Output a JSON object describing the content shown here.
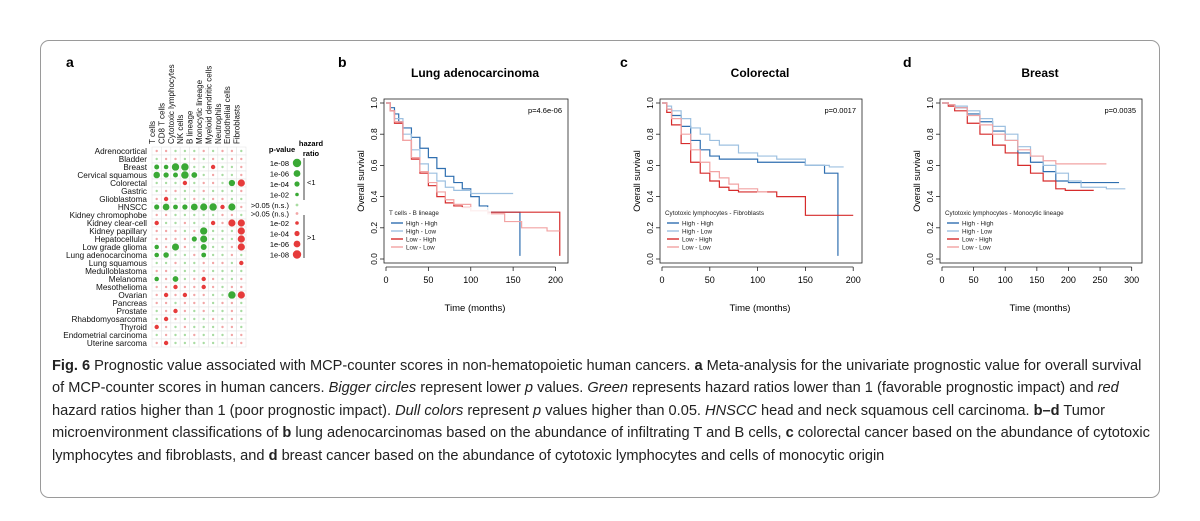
{
  "panel_labels": [
    "a",
    "b",
    "c",
    "d"
  ],
  "heatmap": {
    "columns": [
      "T cells",
      "CD8 T cells",
      "Cytotoxic lymphocytes",
      "NK cells",
      "B lineage",
      "Monocytic lineage",
      "Myeloid dendritic cells",
      "Neutrophils",
      "Endothelial cells",
      "Fibroblasts"
    ],
    "rows": [
      "Adrenocortical",
      "Bladder",
      "Breast",
      "Cervical squamous",
      "Colorectal",
      "Gastric",
      "Glioblastoma",
      "HNSCC",
      "Kidney chromophobe",
      "Kidney clear-cell",
      "Kidney papillary",
      "Hepatocellular",
      "Low grade glioma",
      "Lung adenocarcinoma",
      "Lung squamous",
      "Medulloblastoma",
      "Melanoma",
      "Mesothelioma",
      "Ovarian",
      "Pancreas",
      "Prostate",
      "Rhabdomyosarcoma",
      "Thyroid",
      "Endometrial carcinoma",
      "Uterine sarcoma"
    ],
    "colors": {
      "good": "#3aa935",
      "good_dull": "#a9dca2",
      "bad": "#e63b3b",
      "bad_dull": "#f2a6a6"
    },
    "legend": {
      "pvalue_header": "p-value",
      "hr_header": "hazard ratio",
      "good_levels": [
        "1e-08",
        "1e-06",
        "1e-04",
        "1e-02"
      ],
      "good_label": "<1",
      "ns_levels": [
        ">0.05 (n.s.)",
        ">0.05 (n.s.)"
      ],
      "bad_levels": [
        "1e-02",
        "1e-04",
        "1e-06",
        "1e-08"
      ],
      "bad_label": ">1"
    }
  },
  "chart_data": [
    {
      "type": "line",
      "title": "Lung adenocarcinoma",
      "xlabel": "Time (months)",
      "ylabel": "Overall survival",
      "xlim": [
        0,
        210
      ],
      "ylim": [
        0,
        1
      ],
      "xticks": [
        0,
        50,
        100,
        150,
        200
      ],
      "yticks": [
        "0.0",
        "0.2",
        "0.4",
        "0.6",
        "0.8",
        "1.0"
      ],
      "pvalue": "p=4.6e-06",
      "legend_title": "T cells - B lineage",
      "series": [
        {
          "name": "High - High",
          "color": "#2f6fb0",
          "x": [
            0,
            5,
            10,
            15,
            20,
            30,
            40,
            50,
            60,
            70,
            80,
            90,
            100,
            110,
            120,
            130,
            158
          ],
          "y": [
            1.0,
            0.97,
            0.93,
            0.88,
            0.84,
            0.78,
            0.71,
            0.65,
            0.58,
            0.53,
            0.49,
            0.45,
            0.4,
            0.34,
            0.3,
            0.3,
            0.02
          ]
        },
        {
          "name": "High - Low",
          "color": "#9dc0e0",
          "x": [
            0,
            5,
            10,
            20,
            30,
            40,
            50,
            60,
            70,
            80,
            100,
            120,
            150
          ],
          "y": [
            1.0,
            0.95,
            0.9,
            0.8,
            0.7,
            0.61,
            0.55,
            0.5,
            0.46,
            0.44,
            0.42,
            0.42,
            0.42
          ]
        },
        {
          "name": "Low - High",
          "color": "#d62b2b",
          "x": [
            0,
            5,
            10,
            20,
            30,
            40,
            50,
            60,
            70,
            80,
            90,
            100,
            120,
            150,
            180,
            200,
            205
          ],
          "y": [
            1.0,
            0.95,
            0.87,
            0.76,
            0.64,
            0.55,
            0.47,
            0.4,
            0.36,
            0.34,
            0.33,
            0.31,
            0.3,
            0.3,
            0.3,
            0.3,
            0.02
          ]
        },
        {
          "name": "Low - Low",
          "color": "#f2a3a3",
          "x": [
            0,
            5,
            10,
            20,
            30,
            40,
            50,
            60,
            70,
            80,
            100,
            120,
            140,
            160,
            190,
            205
          ],
          "y": [
            1.0,
            0.95,
            0.88,
            0.76,
            0.65,
            0.56,
            0.49,
            0.43,
            0.38,
            0.35,
            0.31,
            0.29,
            0.24,
            0.2,
            0.18,
            0.18
          ]
        }
      ]
    },
    {
      "type": "line",
      "title": "Colorectal",
      "xlabel": "Time (months)",
      "ylabel": "Overall survival",
      "xlim": [
        0,
        205
      ],
      "ylim": [
        0,
        1
      ],
      "xticks": [
        0,
        50,
        100,
        150,
        200
      ],
      "yticks": [
        "0.0",
        "0.2",
        "0.4",
        "0.6",
        "0.8",
        "1.0"
      ],
      "pvalue": "p=0.0017",
      "legend_title": "Cytotoxic lymphocytes - Fibroblasts",
      "series": [
        {
          "name": "High - High",
          "color": "#2f6fb0",
          "x": [
            0,
            5,
            10,
            20,
            30,
            40,
            50,
            60,
            70,
            80,
            100,
            120,
            150,
            170,
            183,
            184
          ],
          "y": [
            1.0,
            0.96,
            0.92,
            0.85,
            0.76,
            0.7,
            0.66,
            0.64,
            0.64,
            0.64,
            0.62,
            0.62,
            0.6,
            0.55,
            0.55,
            0.02
          ]
        },
        {
          "name": "High - Low",
          "color": "#9dc0e0",
          "x": [
            0,
            5,
            10,
            20,
            30,
            40,
            50,
            60,
            80,
            100,
            120,
            150,
            175,
            190
          ],
          "y": [
            1.0,
            0.98,
            0.95,
            0.9,
            0.84,
            0.8,
            0.76,
            0.73,
            0.68,
            0.66,
            0.64,
            0.6,
            0.59,
            0.59
          ]
        },
        {
          "name": "Low - High",
          "color": "#d62b2b",
          "x": [
            0,
            5,
            10,
            20,
            30,
            40,
            50,
            60,
            70,
            80,
            100,
            120,
            140,
            150,
            200
          ],
          "y": [
            1.0,
            0.94,
            0.86,
            0.74,
            0.62,
            0.55,
            0.5,
            0.46,
            0.44,
            0.43,
            0.43,
            0.4,
            0.4,
            0.28,
            0.28
          ]
        },
        {
          "name": "Low - Low",
          "color": "#f2a3a3",
          "x": [
            0,
            5,
            10,
            20,
            30,
            40,
            50,
            60,
            70,
            80,
            100,
            110
          ],
          "y": [
            1.0,
            0.96,
            0.9,
            0.8,
            0.7,
            0.62,
            0.56,
            0.52,
            0.48,
            0.45,
            0.43,
            0.43
          ]
        }
      ]
    },
    {
      "type": "line",
      "title": "Breast",
      "xlabel": "Time (months)",
      "ylabel": "Overall survival",
      "xlim": [
        0,
        310
      ],
      "ylim": [
        0,
        1
      ],
      "xticks": [
        0,
        50,
        100,
        150,
        200,
        250,
        300
      ],
      "yticks": [
        "0.0",
        "0.2",
        "0.4",
        "0.6",
        "0.8",
        "1.0"
      ],
      "pvalue": "p=0.0035",
      "legend_title": "Cytotoxic lymphocytes - Monocytic lineage",
      "series": [
        {
          "name": "High - High",
          "color": "#2f6fb0",
          "x": [
            0,
            10,
            20,
            40,
            60,
            80,
            100,
            120,
            140,
            160,
            180,
            200,
            220,
            250,
            280
          ],
          "y": [
            1.0,
            0.99,
            0.97,
            0.93,
            0.88,
            0.82,
            0.76,
            0.68,
            0.62,
            0.56,
            0.5,
            0.49,
            0.49,
            0.49,
            0.49
          ]
        },
        {
          "name": "High - Low",
          "color": "#9dc0e0",
          "x": [
            0,
            10,
            20,
            40,
            60,
            80,
            100,
            120,
            140,
            160,
            180,
            200,
            220,
            260,
            290
          ],
          "y": [
            1.0,
            0.99,
            0.98,
            0.95,
            0.9,
            0.85,
            0.8,
            0.72,
            0.66,
            0.6,
            0.55,
            0.5,
            0.46,
            0.45,
            0.45
          ]
        },
        {
          "name": "Low - High",
          "color": "#d62b2b",
          "x": [
            0,
            10,
            20,
            40,
            60,
            80,
            100,
            120,
            140,
            160,
            180,
            195,
            200,
            220,
            240
          ],
          "y": [
            1.0,
            0.98,
            0.95,
            0.87,
            0.8,
            0.73,
            0.68,
            0.6,
            0.55,
            0.5,
            0.45,
            0.44,
            0.44,
            0.44,
            0.44
          ]
        },
        {
          "name": "Low - Low",
          "color": "#f2a3a3",
          "x": [
            0,
            10,
            20,
            40,
            60,
            80,
            100,
            120,
            140,
            160,
            180,
            200,
            230,
            260
          ],
          "y": [
            1.0,
            0.99,
            0.97,
            0.92,
            0.86,
            0.8,
            0.76,
            0.7,
            0.66,
            0.63,
            0.61,
            0.61,
            0.61,
            0.61
          ]
        }
      ]
    }
  ],
  "caption": {
    "fig_label": "Fig. 6",
    "s1": " Prognostic value associated with MCP-counter scores in non-hematopoietic human cancers. ",
    "a": "a",
    "s2": " Meta-analysis for the univariate prognostic value for overall survival of MCP-counter scores in human cancers. ",
    "i1": "Bigger circles",
    "s3": " represent lower ",
    "i2": "p",
    "s4": " values. ",
    "i3": "Green",
    "s5": " represents hazard ratios lower than 1 (favorable prognostic impact) and ",
    "i4": "red",
    "s6": " hazard ratios higher than 1 (poor prognostic impact). ",
    "i5": "Dull colors",
    "s7": " represent ",
    "i6": "p",
    "s8": " values higher than 0.05. ",
    "i7": "HNSCC",
    "s9": " head and neck squamous cell carcinoma. ",
    "bd": "b–d",
    "s10": " Tumor microenvironment classifications of ",
    "b": "b",
    "s11": " lung adenocarcinomas based on the abundance of infiltrating T and B cells, ",
    "c": "c",
    "s12": " colorectal cancer based on the abundance of cytotoxic lymphocytes and fibroblasts, and ",
    "d": "d",
    "s13": " breast cancer based on the abundance of cytotoxic lymphocytes and cells of monocytic origin"
  }
}
